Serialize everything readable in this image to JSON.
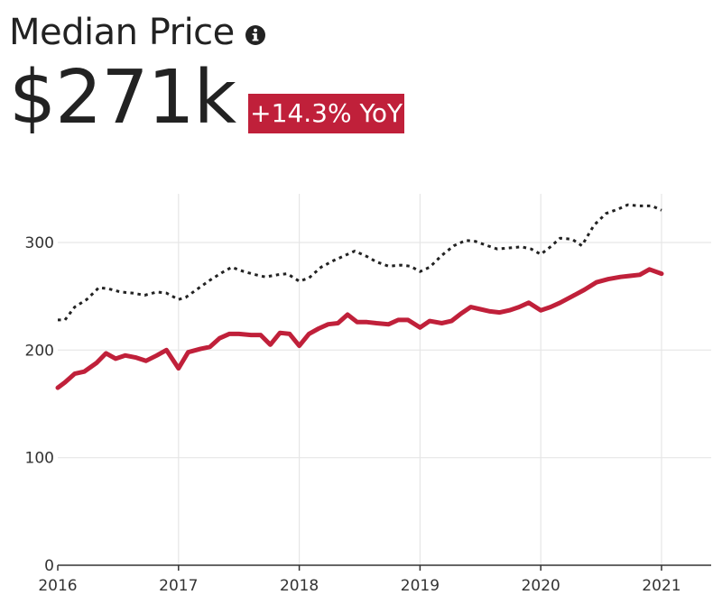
{
  "header": {
    "title": "Median Price",
    "value": "$271k",
    "change_badge": "+14.3% YoY"
  },
  "colors": {
    "badge": "#c0203a",
    "series_main": "#c0203a",
    "series_compare": "#222222",
    "grid": "#e6e6e6"
  },
  "icons": {
    "info": "info-icon"
  },
  "chart_data": {
    "type": "line",
    "xlim": [
      2016,
      2021.4
    ],
    "ylim": [
      0,
      340
    ],
    "x_ticks": [
      2016,
      2017,
      2018,
      2019,
      2020,
      2021
    ],
    "y_ticks": [
      0,
      100,
      200,
      300
    ],
    "grid": true,
    "series": [
      {
        "style": "solid",
        "color": "#c0203a",
        "x": [
          2016.0,
          2016.06,
          2016.14,
          2016.22,
          2016.32,
          2016.4,
          2016.48,
          2016.56,
          2016.65,
          2016.73,
          2016.82,
          2016.9,
          2017.0,
          2017.08,
          2017.18,
          2017.26,
          2017.34,
          2017.42,
          2017.5,
          2017.6,
          2017.68,
          2017.76,
          2017.84,
          2017.92,
          2018.0,
          2018.08,
          2018.16,
          2018.24,
          2018.32,
          2018.4,
          2018.48,
          2018.56,
          2018.64,
          2018.74,
          2018.82,
          2018.9,
          2019.0,
          2019.08,
          2019.18,
          2019.26,
          2019.34,
          2019.42,
          2019.5,
          2019.58,
          2019.66,
          2019.74,
          2019.82,
          2019.9,
          2020.0,
          2020.08,
          2020.16,
          2020.26,
          2020.36,
          2020.46,
          2020.56,
          2020.66,
          2020.74,
          2020.82,
          2020.9,
          2021.0
        ],
        "y": [
          165,
          170,
          178,
          180,
          188,
          197,
          192,
          195,
          193,
          190,
          195,
          200,
          183,
          198,
          201,
          203,
          211,
          215,
          215,
          214,
          214,
          205,
          216,
          215,
          204,
          215,
          220,
          224,
          225,
          233,
          226,
          226,
          225,
          224,
          228,
          228,
          221,
          227,
          225,
          227,
          234,
          240,
          238,
          236,
          235,
          237,
          240,
          244,
          237,
          240,
          244,
          250,
          256,
          263,
          266,
          268,
          269,
          270,
          275,
          271
        ]
      },
      {
        "style": "dotted",
        "color": "#222222",
        "x": [
          2016.0,
          2016.06,
          2016.14,
          2016.24,
          2016.34,
          2016.42,
          2016.52,
          2016.62,
          2016.72,
          2016.82,
          2016.9,
          2017.0,
          2017.06,
          2017.16,
          2017.26,
          2017.36,
          2017.44,
          2017.54,
          2017.64,
          2017.72,
          2017.82,
          2017.9,
          2018.0,
          2018.08,
          2018.18,
          2018.28,
          2018.38,
          2018.46,
          2018.56,
          2018.64,
          2018.74,
          2018.84,
          2018.92,
          2019.0,
          2019.08,
          2019.18,
          2019.28,
          2019.38,
          2019.46,
          2019.56,
          2019.64,
          2019.74,
          2019.84,
          2019.92,
          2020.0,
          2020.08,
          2020.16,
          2020.26,
          2020.34,
          2020.44,
          2020.54,
          2020.64,
          2020.72,
          2020.82,
          2020.92,
          2021.0
        ],
        "y": [
          228,
          228,
          240,
          247,
          258,
          257,
          254,
          253,
          251,
          254,
          253,
          247,
          249,
          257,
          265,
          272,
          277,
          273,
          270,
          268,
          270,
          271,
          264,
          267,
          277,
          283,
          288,
          292,
          287,
          282,
          278,
          279,
          278,
          273,
          277,
          288,
          297,
          302,
          301,
          297,
          294,
          295,
          296,
          294,
          289,
          296,
          304,
          303,
          297,
          316,
          327,
          331,
          335,
          334,
          334,
          330
        ]
      }
    ]
  }
}
